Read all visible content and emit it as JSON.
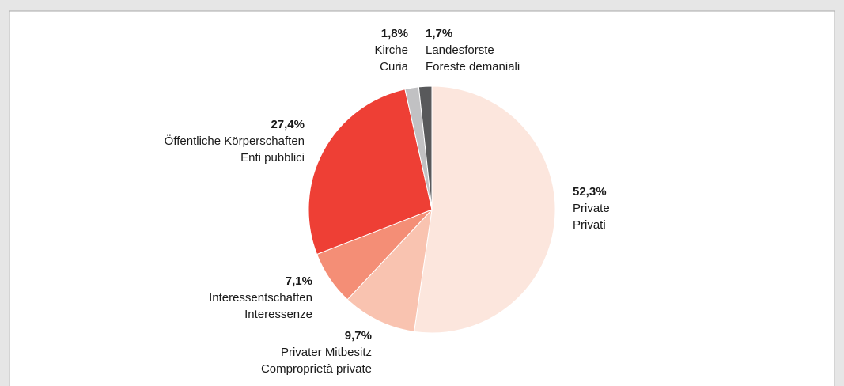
{
  "chart_data": {
    "type": "pie",
    "categories": [
      [
        "Private",
        "Privati"
      ],
      [
        "Privater Mitbesitz",
        "Comproprietà private"
      ],
      [
        "Interessentschaften",
        "Interessenze"
      ],
      [
        "Öffentliche Körperschaften",
        "Enti pubblici"
      ],
      [
        "Kirche",
        "Curia"
      ],
      [
        "Landesforste",
        "Foreste demaniali"
      ]
    ],
    "values": [
      52.3,
      9.7,
      7.1,
      27.4,
      1.8,
      1.7
    ],
    "value_labels": [
      "52,3%",
      "9,7%",
      "7,1%",
      "27,4%",
      "1,8%",
      "1,7%"
    ],
    "colors": [
      "#fce6dd",
      "#f9c3b0",
      "#f48e76",
      "#ee3f35",
      "#c1c1c3",
      "#58595b"
    ]
  }
}
